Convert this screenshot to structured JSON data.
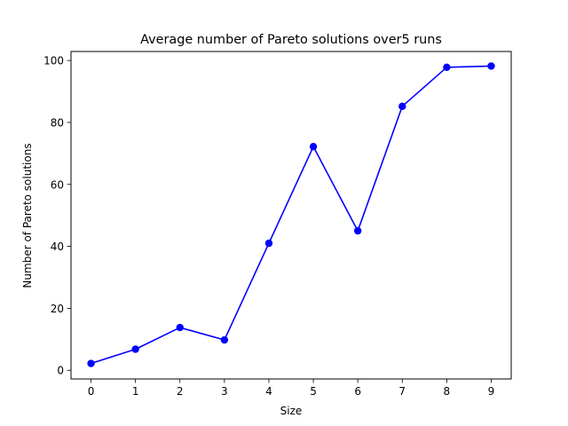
{
  "chart_data": {
    "type": "line",
    "title": "Average number of Pareto solutions over5 runs",
    "xlabel": "Size",
    "ylabel": "Number of Pareto solutions",
    "x": [
      0,
      1,
      2,
      3,
      4,
      5,
      6,
      7,
      8,
      9
    ],
    "xlim": [
      -0.45,
      9.45
    ],
    "ylim": [
      -2.8,
      102.9
    ],
    "xticks": [
      "0",
      "1",
      "2",
      "3",
      "4",
      "5",
      "6",
      "7",
      "8",
      "9"
    ],
    "yticks": [
      "0",
      "20",
      "40",
      "60",
      "80",
      "100"
    ],
    "grid": false,
    "legend": "none",
    "series": [
      {
        "color": "#0000ff",
        "marker": "circle",
        "values": [
          2.2,
          6.8,
          13.8,
          9.8,
          41.0,
          72.2,
          45.0,
          85.2,
          97.8,
          98.2
        ]
      }
    ]
  }
}
